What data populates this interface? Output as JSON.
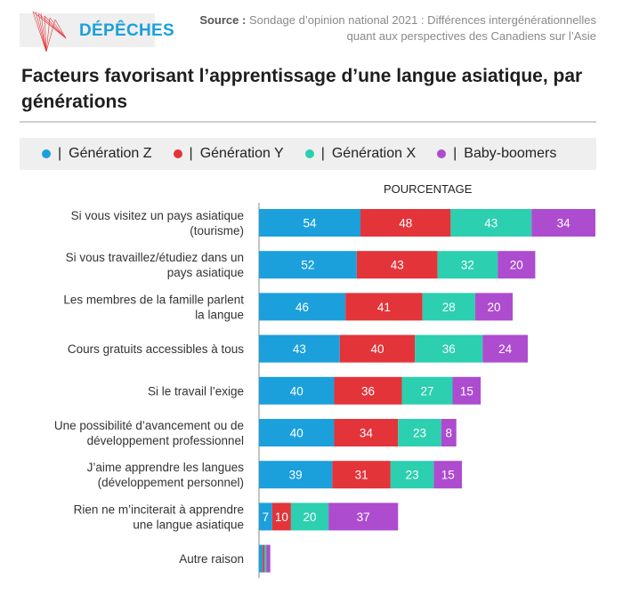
{
  "header": {
    "logo_text": "DÉPÊCHES",
    "logo_icon": "red-line-fan-logo",
    "source_label": "Source :",
    "source_text_line1": "Sondage d’opinion national 2021 : Différences intergénérationnelles",
    "source_text_line2": "quant aux perspectives des Canadiens sur l’Asie"
  },
  "colors": {
    "gen_z": "#1ba0dc",
    "gen_y": "#e3343a",
    "gen_x": "#2ccfb0",
    "boomers": "#ad4ccf",
    "legend_bg": "#efefef",
    "logo_blue": "#1ba0dc"
  },
  "legend": [
    {
      "label": "Génération Z",
      "sep": "|",
      "color": "#1ba0dc"
    },
    {
      "label": "Génération Y",
      "sep": "|",
      "color": "#e3343a"
    },
    {
      "label": "Génération X",
      "sep": "|",
      "color": "#2ccfb0"
    },
    {
      "label": "Baby-boomers",
      "sep": "|",
      "color": "#ad4ccf"
    }
  ],
  "chart_data": {
    "type": "bar",
    "orientation": "horizontal-stacked",
    "title": "Facteurs favorisant l’apprentissage d’une langue asiatique, par générations",
    "xlabel": "POURCENTAGE",
    "ylabel": "",
    "grid": false,
    "legend_position": "top",
    "categories": [
      [
        "Si vous visitez un pays asiatique",
        "(tourisme)"
      ],
      [
        "Si vous travaillez/étudiez dans un",
        "pays asiatique"
      ],
      [
        "Les membres de la famille parlent",
        "la langue"
      ],
      [
        "Cours gratuits accessibles à tous"
      ],
      [
        "Si le travail l’exige"
      ],
      [
        "Une possibilité d’avancement ou de",
        "développement professionnel"
      ],
      [
        "J’aime apprendre les langues",
        "(développement personnel)"
      ],
      [
        "Rien ne m’inciterait à apprendre",
        "une langue asiatique"
      ],
      [
        "Autre raison"
      ]
    ],
    "series": [
      {
        "name": "Génération Z",
        "color": "#1ba0dc",
        "values": [
          54,
          52,
          46,
          43,
          40,
          40,
          39,
          7,
          2
        ]
      },
      {
        "name": "Génération Y",
        "color": "#e3343a",
        "values": [
          48,
          43,
          41,
          40,
          36,
          34,
          31,
          10,
          1
        ]
      },
      {
        "name": "Génération X",
        "color": "#2ccfb0",
        "values": [
          43,
          32,
          28,
          36,
          27,
          23,
          23,
          20,
          1
        ]
      },
      {
        "name": "Baby-boomers",
        "color": "#ad4ccf",
        "values": [
          34,
          20,
          20,
          24,
          15,
          8,
          15,
          37,
          2
        ]
      }
    ],
    "labels_shown_min": 5,
    "xlim": [
      0,
      179
    ]
  }
}
